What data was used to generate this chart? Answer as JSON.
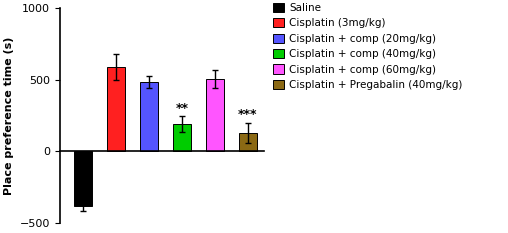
{
  "values": [
    -380,
    590,
    485,
    190,
    505,
    130
  ],
  "errors": [
    35,
    90,
    40,
    55,
    60,
    70
  ],
  "bar_colors": [
    "#000000",
    "#FF2020",
    "#5555FF",
    "#00CC00",
    "#FF55FF",
    "#8B6914"
  ],
  "annotations": [
    null,
    null,
    null,
    "**",
    null,
    "***"
  ],
  "annotation_y": [
    null,
    null,
    null,
    255,
    null,
    210
  ],
  "ylabel": "Place preference time (s)",
  "ylim": [
    -500,
    1000
  ],
  "yticks": [
    -500,
    0,
    500,
    1000
  ],
  "legend_labels": [
    "Saline",
    "Cisplatin (3mg/kg)",
    "Cisplatin + comp (20mg/kg)",
    "Cisplatin + comp (40mg/kg)",
    "Cisplatin + comp (60mg/kg)",
    "Cisplatin + Pregabalin (40mg/kg)"
  ],
  "legend_colors": [
    "#000000",
    "#FF2020",
    "#5555FF",
    "#00CC00",
    "#FF55FF",
    "#8B6914"
  ],
  "background_color": "#ffffff",
  "bar_width": 0.55,
  "label_fontsize": 8,
  "tick_fontsize": 8,
  "legend_fontsize": 7.5,
  "annot_fontsize": 9
}
